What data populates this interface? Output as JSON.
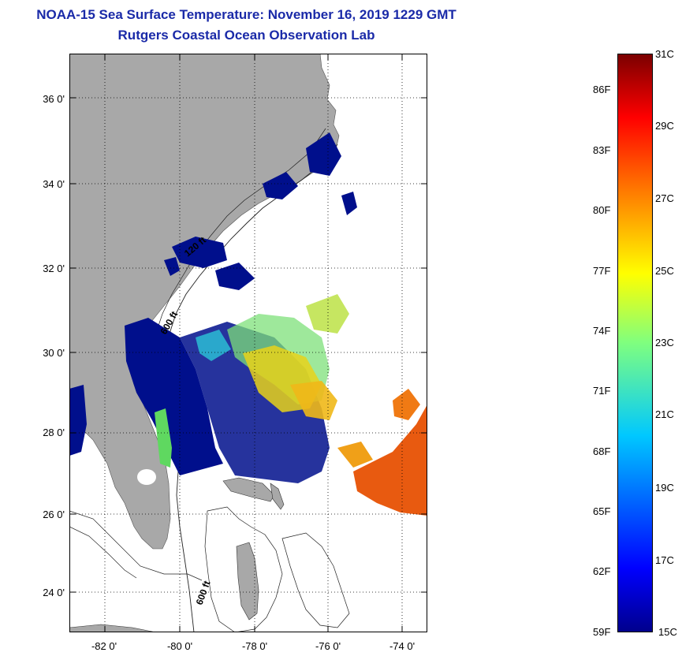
{
  "header": {
    "title": "NOAA-15 Sea Surface Temperature:  November 16, 2019 1229 GMT",
    "subtitle": "Rutgers Coastal Ocean Observation Lab"
  },
  "map": {
    "latitude_labels": [
      "36 0'",
      "34 0'",
      "32 0'",
      "30 0'",
      "28 0'",
      "26 0'",
      "24 0'"
    ],
    "longitude_labels": [
      "-82 0'",
      "-80 0'",
      "-78 0'",
      "-76 0'",
      "-74 0'"
    ],
    "contour_labels": [
      "120 ft",
      "600 ft",
      "600 ft"
    ],
    "colors": {
      "land": "#a8a8a8",
      "no_data": "#ffffff",
      "cold": "#000f8c",
      "warm": "#e85a10"
    }
  },
  "colorbar": {
    "celsius_labels": [
      "31C",
      "29C",
      "27C",
      "25C",
      "23C",
      "21C",
      "19C",
      "17C",
      "15C"
    ],
    "fahrenheit_labels": [
      "86F",
      "83F",
      "80F",
      "77F",
      "74F",
      "71F",
      "68F",
      "65F",
      "62F",
      "59F"
    ],
    "min_c": 15,
    "max_c": 31
  }
}
